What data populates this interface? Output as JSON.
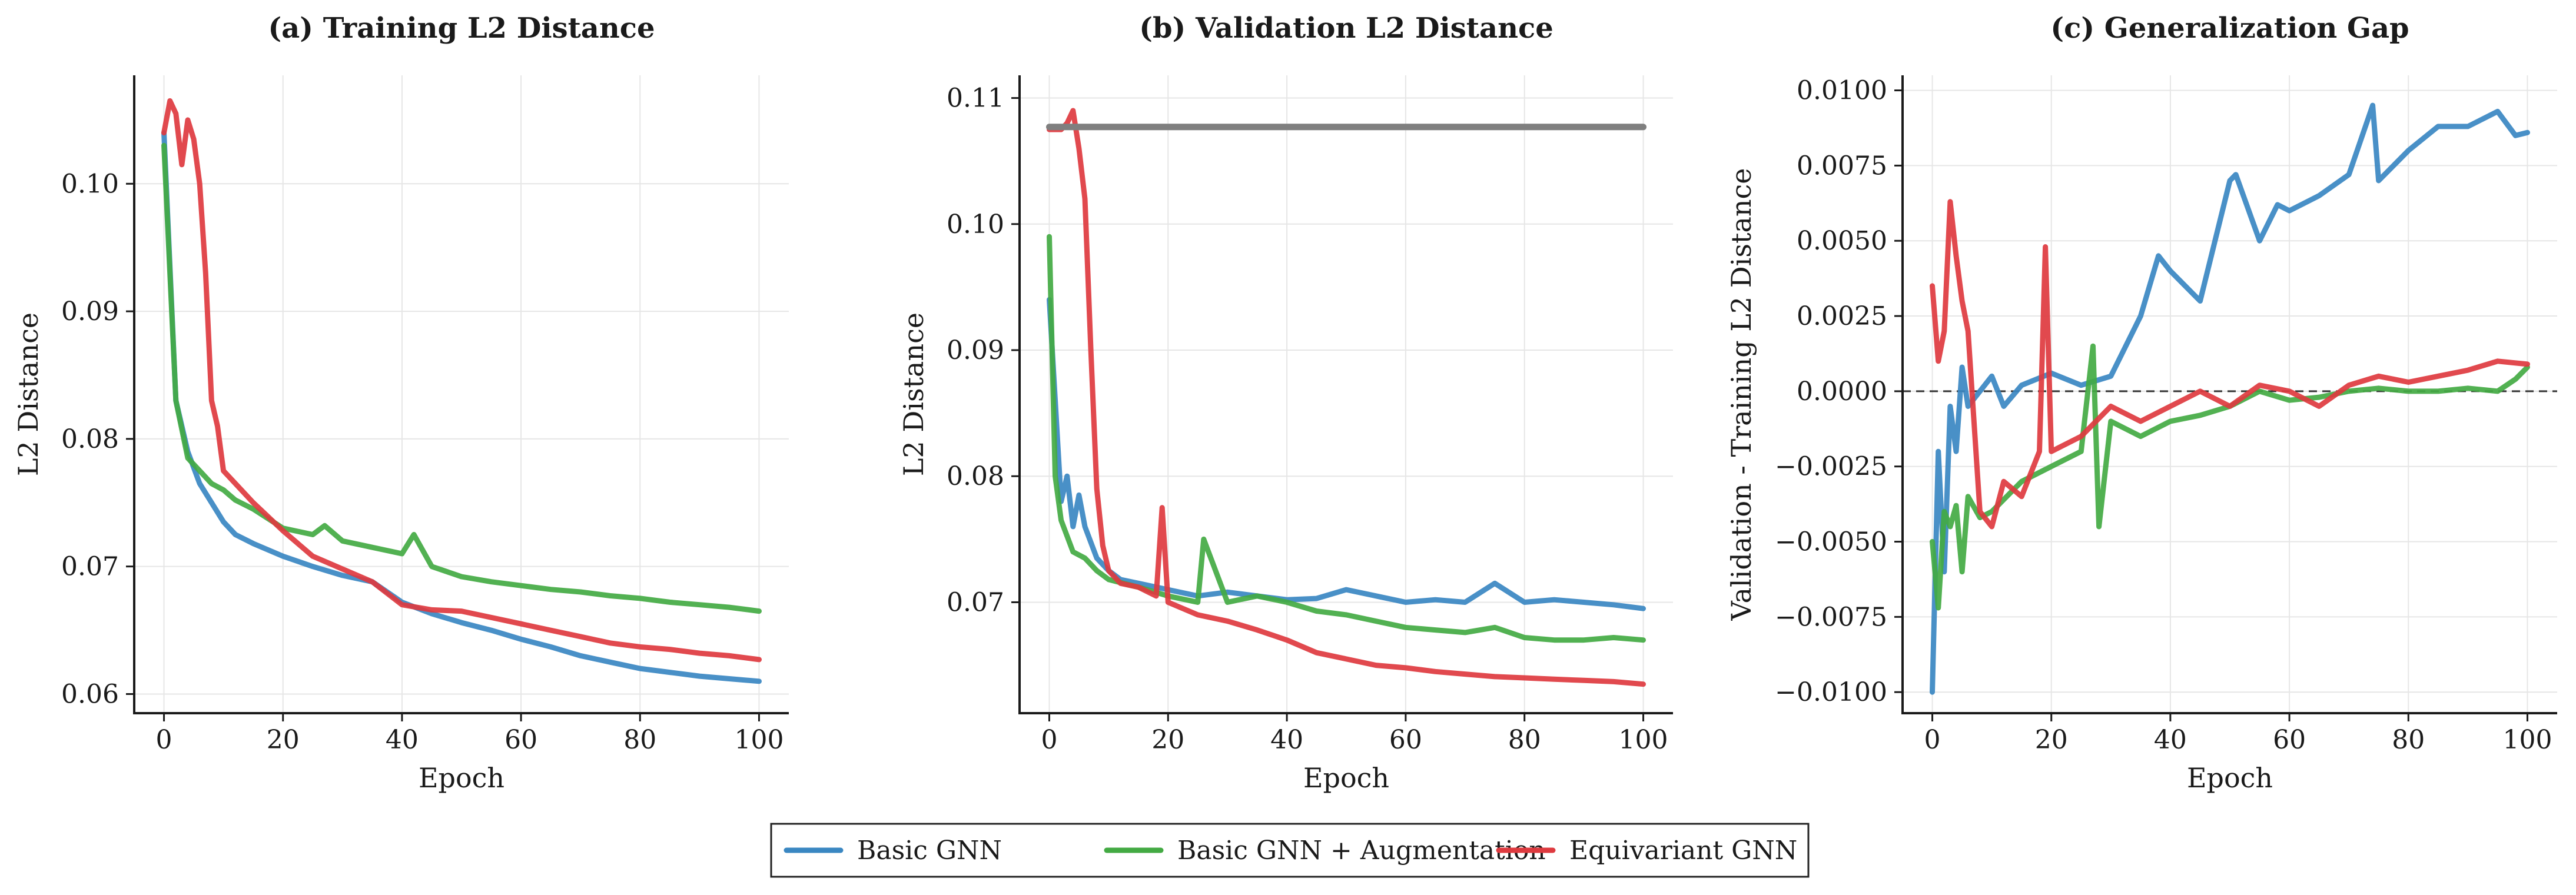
{
  "colors": {
    "series": [
      "#3a87c2",
      "#43aa43",
      "#de3a3f"
    ],
    "baseline": "#7f7f7f",
    "grid": "#e6e6e6",
    "axis": "#1a1a1a"
  },
  "legend": {
    "placement": "bottom-center",
    "entries": [
      "Basic GNN",
      "Basic GNN + Augmentation",
      "Equivariant GNN"
    ]
  },
  "chart_data": [
    {
      "type": "line",
      "title": "(a) Training L2 Distance",
      "xlabel": "Epoch",
      "ylabel": "L2 Distance",
      "xlim": [
        -5,
        105
      ],
      "ylim": [
        0.0585,
        0.1085
      ],
      "xticks": [
        0,
        20,
        40,
        60,
        80,
        100
      ],
      "xtick_labels": [
        "0",
        "20",
        "40",
        "60",
        "80",
        "100"
      ],
      "yticks": [
        0.06,
        0.07,
        0.08,
        0.09,
        0.1
      ],
      "ytick_labels": [
        "0.06",
        "0.07",
        "0.08",
        "0.09",
        "0.10"
      ],
      "grid": true,
      "series": [
        {
          "name": "Basic GNN",
          "x": [
            0,
            2,
            4,
            6,
            8,
            10,
            12,
            15,
            20,
            25,
            30,
            35,
            40,
            45,
            50,
            55,
            60,
            65,
            70,
            75,
            80,
            85,
            90,
            95,
            100
          ],
          "y": [
            0.104,
            0.083,
            0.079,
            0.0765,
            0.075,
            0.0735,
            0.0725,
            0.0718,
            0.0708,
            0.07,
            0.0693,
            0.0688,
            0.0672,
            0.0663,
            0.0656,
            0.065,
            0.0643,
            0.0637,
            0.063,
            0.0625,
            0.062,
            0.0617,
            0.0614,
            0.0612,
            0.061
          ]
        },
        {
          "name": "Basic GNN + Augmentation",
          "x": [
            0,
            2,
            4,
            6,
            8,
            10,
            12,
            15,
            20,
            25,
            27,
            30,
            35,
            40,
            42,
            45,
            50,
            55,
            60,
            65,
            70,
            75,
            80,
            85,
            90,
            95,
            100
          ],
          "y": [
            0.103,
            0.083,
            0.0785,
            0.0775,
            0.0765,
            0.076,
            0.0752,
            0.0745,
            0.073,
            0.0725,
            0.0732,
            0.072,
            0.0715,
            0.071,
            0.0725,
            0.07,
            0.0692,
            0.0688,
            0.0685,
            0.0682,
            0.068,
            0.0677,
            0.0675,
            0.0672,
            0.067,
            0.0668,
            0.0665
          ]
        },
        {
          "name": "Equivariant GNN",
          "x": [
            0,
            1,
            2,
            3,
            4,
            5,
            6,
            7,
            8,
            9,
            10,
            12,
            15,
            20,
            25,
            30,
            35,
            40,
            45,
            50,
            55,
            60,
            65,
            70,
            75,
            80,
            85,
            90,
            95,
            100
          ],
          "y": [
            0.104,
            0.1065,
            0.1055,
            0.1015,
            0.105,
            0.1035,
            0.1,
            0.093,
            0.083,
            0.081,
            0.0775,
            0.0765,
            0.075,
            0.0728,
            0.0708,
            0.0698,
            0.0688,
            0.067,
            0.0666,
            0.0665,
            0.066,
            0.0655,
            0.065,
            0.0645,
            0.064,
            0.0637,
            0.0635,
            0.0632,
            0.063,
            0.0627
          ]
        }
      ]
    },
    {
      "type": "line",
      "title": "(b) Validation L2 Distance",
      "xlabel": "Epoch",
      "ylabel": "L2 Distance",
      "xlim": [
        -5,
        105
      ],
      "ylim": [
        0.0612,
        0.1118
      ],
      "xticks": [
        0,
        20,
        40,
        60,
        80,
        100
      ],
      "xtick_labels": [
        "0",
        "20",
        "40",
        "60",
        "80",
        "100"
      ],
      "yticks": [
        0.07,
        0.08,
        0.09,
        0.1,
        0.11
      ],
      "ytick_labels": [
        "0.07",
        "0.08",
        "0.09",
        "0.10",
        "0.11"
      ],
      "grid": true,
      "series": [
        {
          "name": "Basic GNN",
          "x": [
            0,
            2,
            3,
            4,
            5,
            6,
            8,
            10,
            12,
            15,
            20,
            25,
            30,
            35,
            40,
            45,
            50,
            55,
            60,
            65,
            70,
            75,
            80,
            85,
            90,
            95,
            100
          ],
          "y": [
            0.094,
            0.078,
            0.08,
            0.076,
            0.0785,
            0.076,
            0.0735,
            0.0725,
            0.0718,
            0.0715,
            0.071,
            0.0705,
            0.0708,
            0.0705,
            0.0702,
            0.0703,
            0.071,
            0.0705,
            0.07,
            0.0702,
            0.07,
            0.0715,
            0.07,
            0.0702,
            0.07,
            0.0698,
            0.0695
          ]
        },
        {
          "name": "Basic GNN + Augmentation",
          "x": [
            0,
            1,
            2,
            4,
            6,
            8,
            10,
            15,
            20,
            25,
            26,
            30,
            35,
            40,
            45,
            50,
            55,
            60,
            65,
            70,
            75,
            80,
            85,
            90,
            95,
            100
          ],
          "y": [
            0.099,
            0.08,
            0.0765,
            0.074,
            0.0735,
            0.0725,
            0.0718,
            0.0712,
            0.0705,
            0.07,
            0.075,
            0.07,
            0.0705,
            0.07,
            0.0693,
            0.069,
            0.0685,
            0.068,
            0.0678,
            0.0676,
            0.068,
            0.0672,
            0.067,
            0.067,
            0.0672,
            0.067
          ]
        },
        {
          "name": "Equivariant GNN",
          "x": [
            0,
            2,
            3,
            4,
            5,
            6,
            7,
            8,
            9,
            10,
            12,
            15,
            18,
            19,
            20,
            25,
            30,
            35,
            40,
            45,
            50,
            55,
            60,
            65,
            70,
            75,
            80,
            85,
            90,
            95,
            100
          ],
          "y": [
            0.1075,
            0.1075,
            0.108,
            0.109,
            0.106,
            0.102,
            0.09,
            0.079,
            0.0745,
            0.0725,
            0.0715,
            0.0712,
            0.0705,
            0.0775,
            0.07,
            0.069,
            0.0685,
            0.0678,
            0.067,
            0.066,
            0.0655,
            0.065,
            0.0648,
            0.0645,
            0.0643,
            0.0641,
            0.064,
            0.0639,
            0.0638,
            0.0637,
            0.0635
          ]
        },
        {
          "name": "",
          "baseline": true,
          "x": [
            0,
            100
          ],
          "y": [
            0.1077,
            0.1077
          ]
        }
      ]
    },
    {
      "type": "line",
      "title": "(c) Generalization Gap",
      "xlabel": "Epoch",
      "ylabel": "Validation - Training L2 Distance",
      "xlim": [
        -5,
        105
      ],
      "ylim": [
        -0.0107,
        0.0105
      ],
      "xticks": [
        0,
        20,
        40,
        60,
        80,
        100
      ],
      "xtick_labels": [
        "0",
        "20",
        "40",
        "60",
        "80",
        "100"
      ],
      "yticks": [
        -0.01,
        -0.0075,
        -0.005,
        -0.0025,
        0,
        0.0025,
        0.005,
        0.0075,
        0.01
      ],
      "ytick_labels": [
        "−0.0100",
        "−0.0075",
        "−0.0050",
        "−0.0025",
        "0.0000",
        "0.0025",
        "0.0050",
        "0.0075",
        "0.0100"
      ],
      "grid": true,
      "zero_line": true,
      "series": [
        {
          "name": "Basic GNN",
          "x": [
            0,
            1,
            2,
            3,
            4,
            5,
            6,
            8,
            10,
            12,
            15,
            20,
            25,
            30,
            35,
            38,
            40,
            45,
            50,
            51,
            55,
            58,
            60,
            65,
            70,
            74,
            75,
            80,
            85,
            90,
            95,
            98,
            100
          ],
          "y": [
            -0.01,
            -0.002,
            -0.006,
            -0.0005,
            -0.002,
            0.0008,
            -0.0005,
            0.0,
            0.0005,
            -0.0005,
            0.0002,
            0.0006,
            0.0002,
            0.0005,
            0.0025,
            0.0045,
            0.004,
            0.003,
            0.007,
            0.0072,
            0.005,
            0.0062,
            0.006,
            0.0065,
            0.0072,
            0.0095,
            0.007,
            0.008,
            0.0088,
            0.0088,
            0.0093,
            0.0085,
            0.0086
          ]
        },
        {
          "name": "Basic GNN + Augmentation",
          "x": [
            0,
            1,
            2,
            3,
            4,
            5,
            6,
            8,
            10,
            15,
            20,
            25,
            27,
            28,
            30,
            35,
            40,
            45,
            50,
            55,
            60,
            65,
            70,
            75,
            80,
            85,
            90,
            95,
            98,
            100
          ],
          "y": [
            -0.005,
            -0.0072,
            -0.004,
            -0.0045,
            -0.0038,
            -0.006,
            -0.0035,
            -0.0042,
            -0.004,
            -0.003,
            -0.0025,
            -0.002,
            0.0015,
            -0.0045,
            -0.001,
            -0.0015,
            -0.001,
            -0.0008,
            -0.0005,
            0.0,
            -0.0003,
            -0.0002,
            0.0,
            0.0001,
            0.0,
            0.0,
            0.0001,
            0.0,
            0.0004,
            0.0008
          ]
        },
        {
          "name": "Equivariant GNN",
          "x": [
            0,
            1,
            2,
            3,
            4,
            5,
            6,
            8,
            10,
            12,
            15,
            18,
            19,
            20,
            25,
            30,
            35,
            40,
            45,
            50,
            55,
            60,
            65,
            70,
            75,
            80,
            85,
            90,
            95,
            100
          ],
          "y": [
            0.0035,
            0.001,
            0.002,
            0.0063,
            0.0045,
            0.003,
            0.002,
            -0.004,
            -0.0045,
            -0.003,
            -0.0035,
            -0.002,
            0.0048,
            -0.002,
            -0.0015,
            -0.0005,
            -0.001,
            -0.0005,
            0.0,
            -0.0005,
            0.0002,
            0.0,
            -0.0005,
            0.0002,
            0.0005,
            0.0003,
            0.0005,
            0.0007,
            0.001,
            0.0009
          ]
        }
      ]
    }
  ]
}
